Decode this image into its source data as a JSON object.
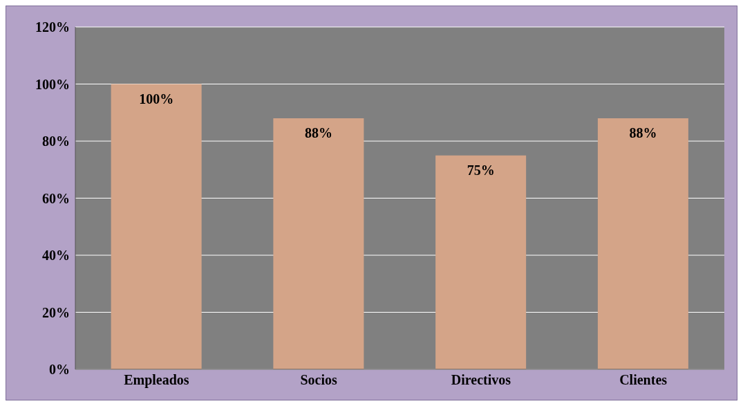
{
  "chart_data": {
    "type": "bar",
    "categories": [
      "Empleados",
      "Socios",
      "Directivos",
      "Clientes"
    ],
    "values": [
      100,
      88,
      75,
      88
    ],
    "value_labels": [
      "100%",
      "88%",
      "75%",
      "88%"
    ],
    "color": "#d4a488",
    "ylim": [
      0,
      120
    ],
    "yticks": [
      {
        "value": 0,
        "label": "0%"
      },
      {
        "value": 20,
        "label": "20%"
      },
      {
        "value": 40,
        "label": "40%"
      },
      {
        "value": 60,
        "label": "60%"
      },
      {
        "value": 80,
        "label": "80%"
      },
      {
        "value": 100,
        "label": "100%"
      },
      {
        "value": 120,
        "label": "120%"
      }
    ],
    "grid": "y"
  }
}
